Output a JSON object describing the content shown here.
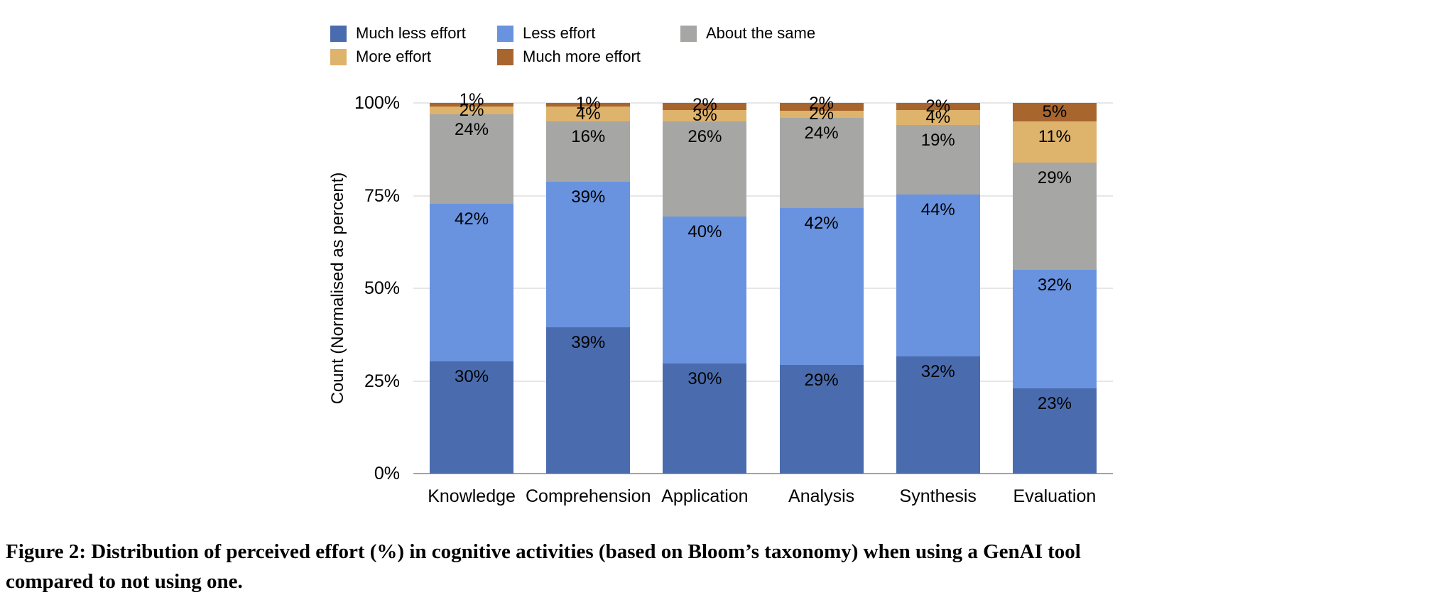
{
  "figure": {
    "caption": "Figure 2: Distribution of perceived effort (%) in cognitive activities (based on Bloom’s taxonomy) when using a GenAI tool compared to not using one.",
    "caption_lines": [
      "Figure 2: Distribution of perceived effort (%) in cognitive activities (based on Bloom’s taxonomy) when using a GenAI tool",
      "compared to not using one."
    ]
  },
  "legend": {
    "rows": [
      [
        "Much less effort",
        "Less effort",
        "About the same"
      ],
      [
        "More effort",
        "Much more effort"
      ]
    ]
  },
  "chart_data": {
    "type": "bar",
    "variant": "stacked-100-percent",
    "ylabel": "Count (Normalised as percent)",
    "xlabel": "",
    "categories": [
      "Knowledge",
      "Comprehension",
      "Application",
      "Analysis",
      "Synthesis",
      "Evaluation"
    ],
    "series": [
      {
        "name": "Much less effort",
        "color": "#4a6cae",
        "values": [
          30,
          39,
          30,
          29,
          32,
          23
        ]
      },
      {
        "name": "Less effort",
        "color": "#6993df",
        "values": [
          42,
          39,
          40,
          42,
          44,
          32
        ]
      },
      {
        "name": "About the same",
        "color": "#a6a6a5",
        "values": [
          24,
          16,
          26,
          24,
          19,
          29
        ]
      },
      {
        "name": "More effort",
        "color": "#deb36c",
        "values": [
          2,
          4,
          3,
          2,
          4,
          11
        ]
      },
      {
        "name": "Much more effort",
        "color": "#a8652e",
        "values": [
          1,
          1,
          2,
          2,
          2,
          5
        ]
      }
    ],
    "data_labels_format": "percent",
    "y_ticks": [
      {
        "value": 0,
        "label": "0%"
      },
      {
        "value": 25,
        "label": "25%"
      },
      {
        "value": 50,
        "label": "50%"
      },
      {
        "value": 75,
        "label": "75%"
      },
      {
        "value": 100,
        "label": "100%"
      }
    ],
    "ylim": [
      0,
      100
    ],
    "grid": true,
    "legend_position": "top"
  }
}
